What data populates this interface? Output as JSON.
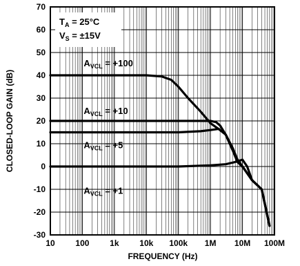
{
  "chart_data": {
    "type": "line",
    "xlabel": "FREQUENCY (Hz)",
    "ylabel": "CLOSED-LOOP GAIN (dB)",
    "xscale": "log",
    "xlim": [
      10,
      100000000
    ],
    "ylim": [
      -30,
      70
    ],
    "grid": true,
    "x_ticks": [
      {
        "value": 10,
        "label": "10"
      },
      {
        "value": 100,
        "label": "100"
      },
      {
        "value": 1000,
        "label": "1k"
      },
      {
        "value": 10000,
        "label": "10k"
      },
      {
        "value": 100000,
        "label": "100k"
      },
      {
        "value": 1000000,
        "label": "1M"
      },
      {
        "value": 10000000,
        "label": "10M"
      },
      {
        "value": 100000000,
        "label": "100M"
      }
    ],
    "y_ticks": [
      70,
      60,
      50,
      40,
      30,
      20,
      10,
      0,
      -10,
      -20,
      -30
    ],
    "conditions": {
      "ta_main": "T",
      "ta_sub": "A",
      "ta_rest": " = 25°C",
      "vs_main": "V",
      "vs_sub": "S",
      "vs_rest": " = ±15V"
    },
    "series": [
      {
        "label_main": "A",
        "label_sub": "VCL",
        "label_rest": " = +100",
        "label_anchor": [
          110,
          44
        ],
        "x": [
          10,
          1000,
          10000,
          30000,
          60000,
          100000,
          200000,
          500000,
          1000000,
          2000000,
          3000000,
          5000000,
          7000000,
          10000000,
          20000000,
          40000000,
          70000000
        ],
        "y": [
          40,
          40,
          40,
          39.5,
          38,
          35,
          30,
          24,
          19,
          16,
          14,
          8,
          3,
          0,
          -6,
          -10,
          -26
        ]
      },
      {
        "label_main": "A",
        "label_sub": "VCL",
        "label_rest": " = +10",
        "label_anchor": [
          110,
          23
        ],
        "x": [
          10,
          1000,
          100000,
          500000,
          1000000,
          1500000,
          2000000,
          3000000,
          5000000,
          7000000,
          10000000,
          20000000,
          40000000,
          70000000
        ],
        "y": [
          20,
          20,
          20,
          20,
          20,
          19.5,
          18,
          14,
          7,
          2,
          0,
          -6,
          -10,
          -26
        ]
      },
      {
        "label_main": "A",
        "label_sub": "VCL",
        "label_rest": " = +5",
        "label_anchor": [
          110,
          8
        ],
        "x": [
          10,
          1000,
          100000,
          500000,
          1000000,
          1800000,
          3000000,
          5000000,
          7000000,
          10000000,
          20000000,
          40000000,
          70000000
        ],
        "y": [
          15,
          15,
          15,
          15.5,
          16,
          16.5,
          14,
          7,
          2,
          0,
          -6,
          -10,
          -26
        ]
      },
      {
        "label_main": "A",
        "label_sub": "VCL",
        "label_rest": " = +1",
        "label_anchor": [
          110,
          -12
        ],
        "x": [
          10,
          1000,
          100000,
          1000000,
          3000000,
          6000000,
          10000000,
          14000000,
          20000000,
          40000000,
          70000000
        ],
        "y": [
          0,
          0,
          0,
          0.5,
          1,
          2,
          3,
          0,
          -6,
          -10,
          -26
        ]
      }
    ]
  }
}
